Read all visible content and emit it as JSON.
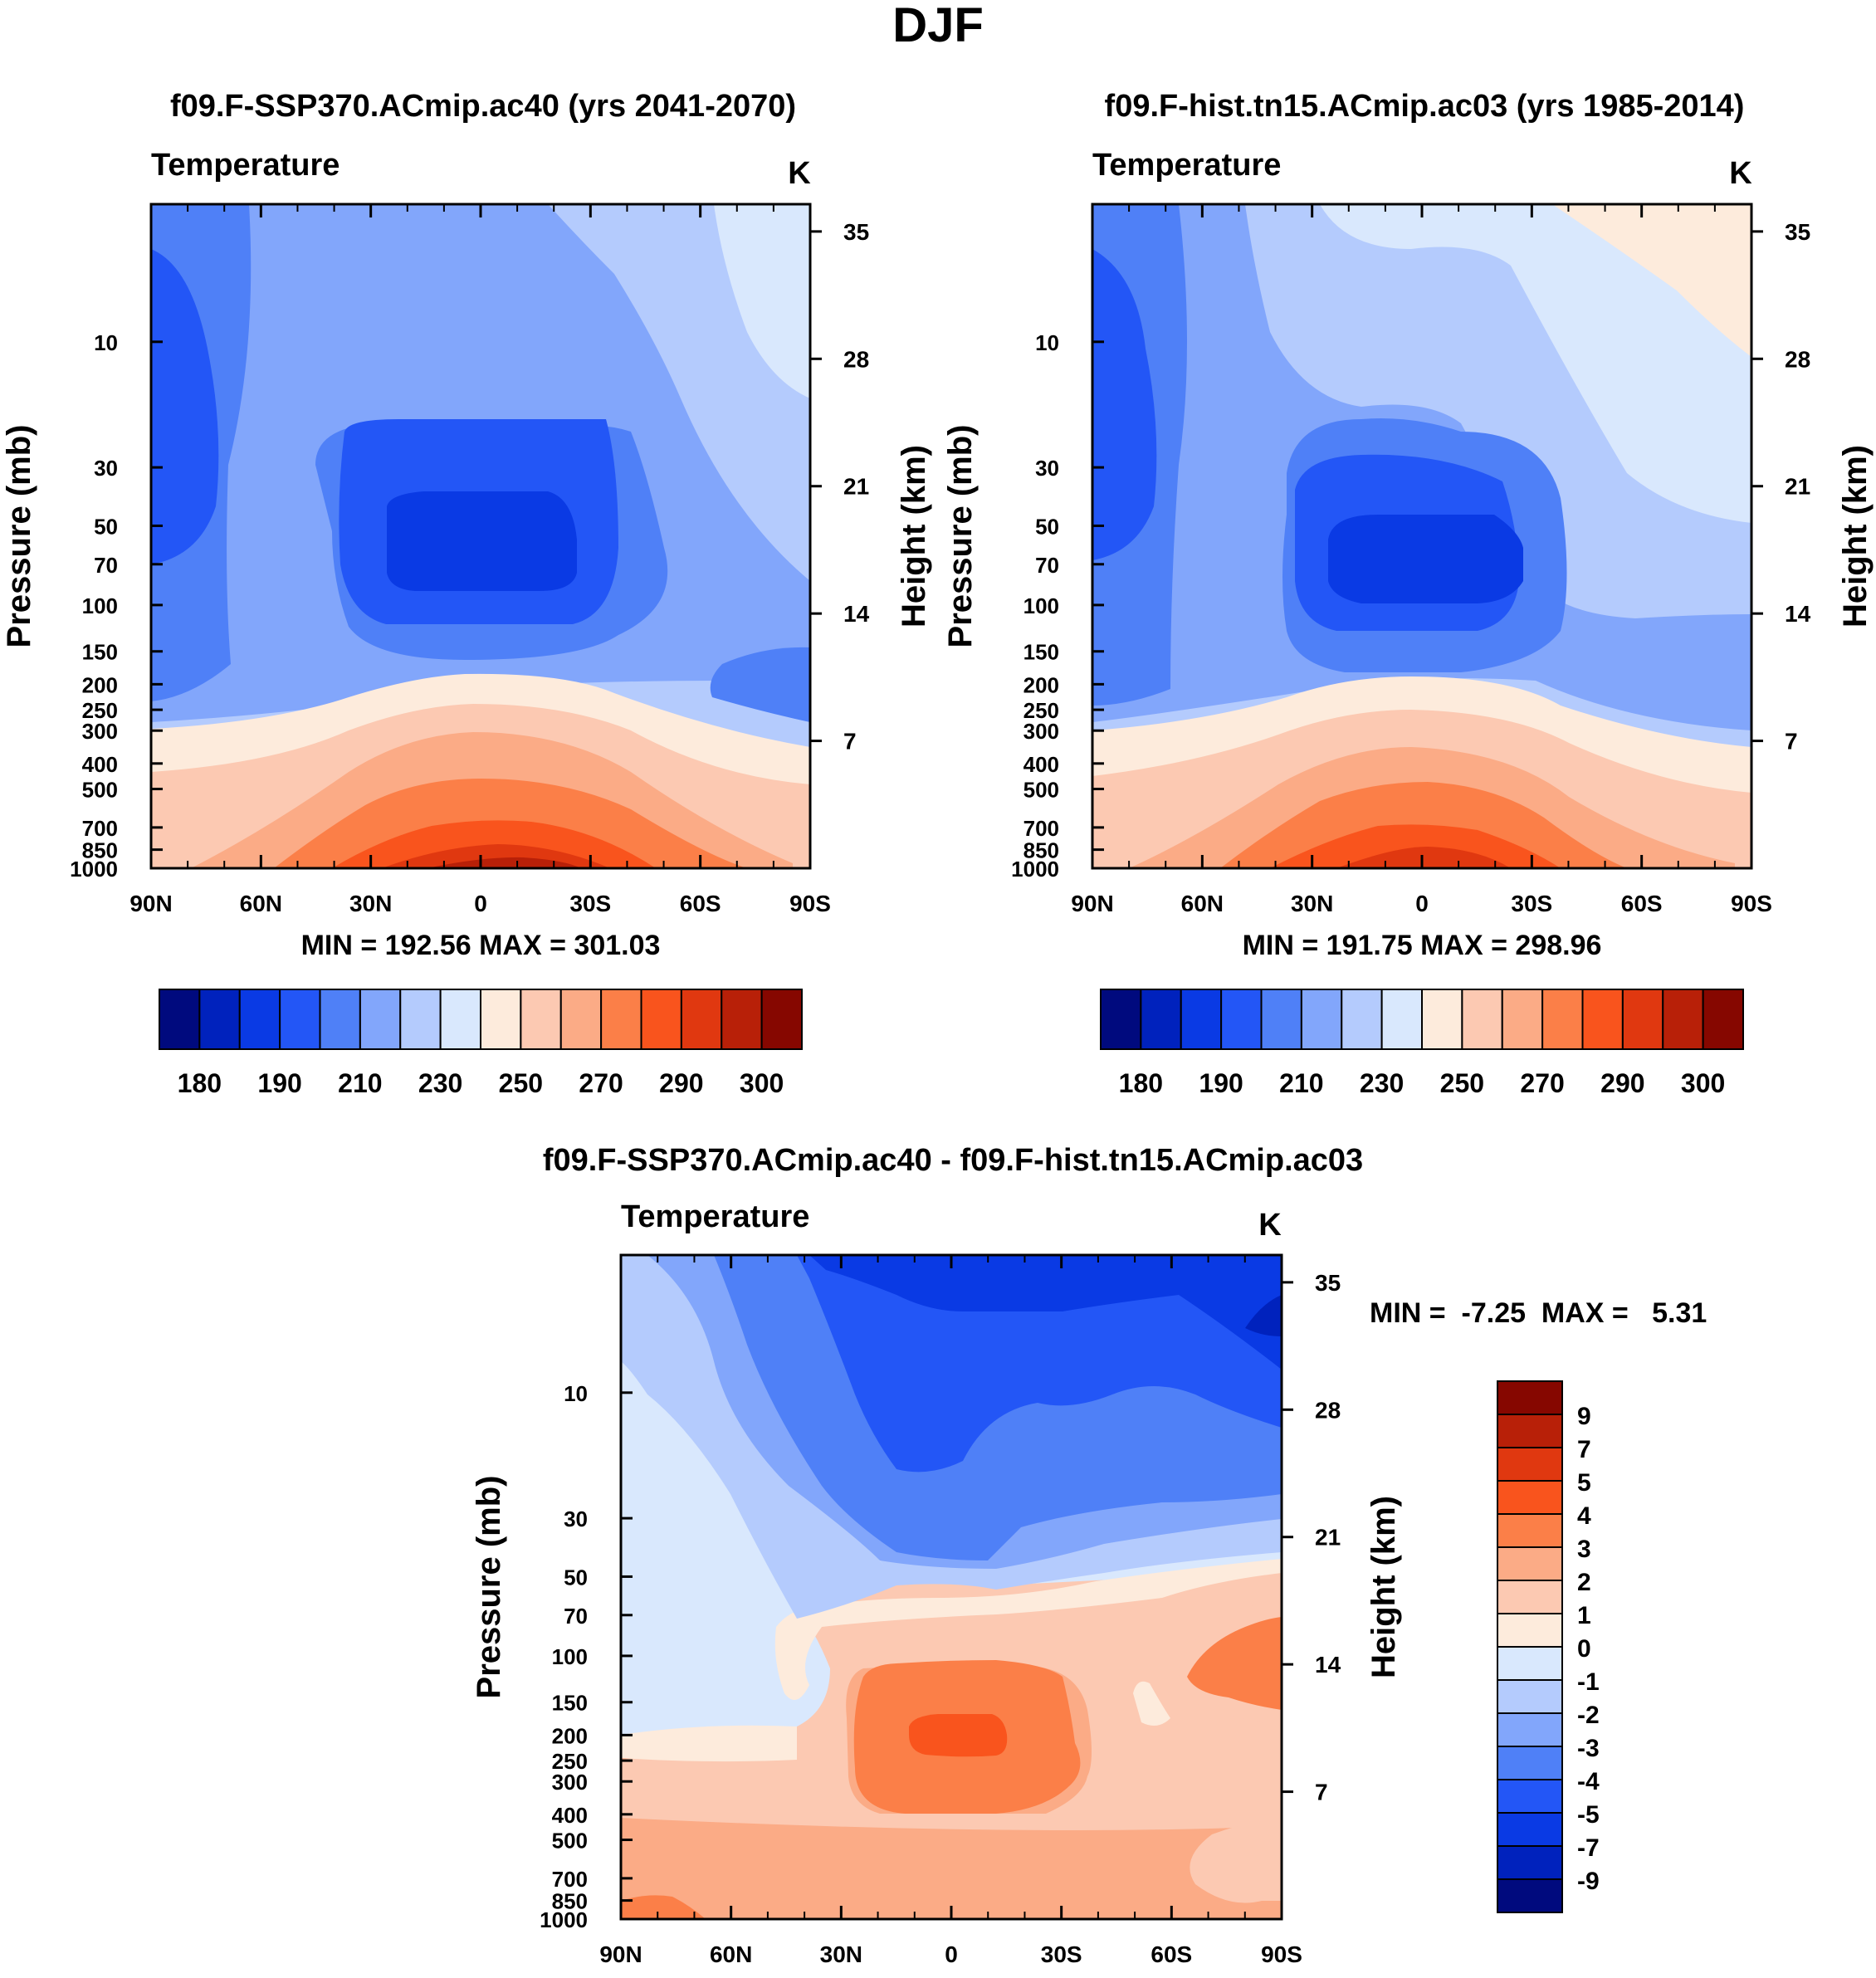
{
  "figure_title": "DJF",
  "colors": {
    "temp": [
      "#000a7e",
      "#0022bd",
      "#0a3ae4",
      "#2356f6",
      "#4f80f7",
      "#82a6fb",
      "#b4cbfd",
      "#d9e8fd",
      "#fdebdc",
      "#fcc9b2",
      "#fbab86",
      "#fb7f48",
      "#f9541d",
      "#e03810",
      "#b82008",
      "#860700"
    ],
    "diff": [
      "#000a7e",
      "#0022bd",
      "#0a3ae4",
      "#2356f6",
      "#4f80f7",
      "#82a6fb",
      "#b4cbfd",
      "#d9e8fd",
      "#fdebdc",
      "#fcc9b2",
      "#fbab86",
      "#fb7f48",
      "#f9541d",
      "#e03810",
      "#b82008",
      "#860700"
    ]
  },
  "panels": [
    {
      "id": "future",
      "title": "f09.F-SSP370.ACmip.ac40 (yrs 2041-2070)",
      "field_label": "Temperature",
      "units": "K",
      "ylabel": "Pressure (mb)",
      "ylabel2": "Height (km)",
      "stats": "MIN = 192.56  MAX = 301.03",
      "colorbar_labels": [
        "180",
        "190",
        "210",
        "230",
        "250",
        "270",
        "290",
        "300"
      ]
    },
    {
      "id": "historical",
      "title": "f09.F-hist.tn15.ACmip.ac03 (yrs 1985-2014)",
      "field_label": "Temperature",
      "units": "K",
      "ylabel": "Pressure (mb)",
      "ylabel2": "Height (km)",
      "stats": "MIN = 191.75  MAX = 298.96",
      "colorbar_labels": [
        "180",
        "190",
        "210",
        "230",
        "250",
        "270",
        "290",
        "300"
      ]
    },
    {
      "id": "difference",
      "title": "f09.F-SSP370.ACmip.ac40 - f09.F-hist.tn15.ACmip.ac03",
      "field_label": "Temperature",
      "units": "K",
      "ylabel": "Pressure (mb)",
      "ylabel2": "Height (km)",
      "stats": "MIN =  -7.25  MAX =   5.31",
      "colorbar_labels": [
        "9",
        "7",
        "5",
        "4",
        "3",
        "2",
        "1",
        "0",
        "-1",
        "-2",
        "-3",
        "-4",
        "-5",
        "-7",
        "-9"
      ]
    }
  ],
  "chart_data": [
    {
      "type": "heatmap",
      "title": "f09.F-SSP370.ACmip.ac40 (yrs 2041-2070)",
      "variable": "Temperature",
      "units": "K",
      "xlabel": "",
      "ylabel": "Pressure (mb)",
      "ylabel_right": "Height (km)",
      "x_ticks": [
        "90N",
        "60N",
        "30N",
        "0",
        "30S",
        "60S",
        "90S"
      ],
      "y_ticks": [
        "10",
        "30",
        "50",
        "70",
        "100",
        "150",
        "200",
        "250",
        "300",
        "400",
        "500",
        "700",
        "850",
        "1000"
      ],
      "y_ticks_right": [
        "35",
        "28",
        "21",
        "14",
        "7"
      ],
      "xlim": [
        90,
        -90
      ],
      "ylim": [
        1000,
        3
      ],
      "min": 192.56,
      "max": 301.03,
      "contour_levels": [
        180,
        185,
        190,
        200,
        210,
        220,
        230,
        240,
        250,
        260,
        270,
        280,
        290,
        295,
        300
      ]
    },
    {
      "type": "heatmap",
      "title": "f09.F-hist.tn15.ACmip.ac03 (yrs 1985-2014)",
      "variable": "Temperature",
      "units": "K",
      "xlabel": "",
      "ylabel": "Pressure (mb)",
      "ylabel_right": "Height (km)",
      "x_ticks": [
        "90N",
        "60N",
        "30N",
        "0",
        "30S",
        "60S",
        "90S"
      ],
      "y_ticks": [
        "10",
        "30",
        "50",
        "70",
        "100",
        "150",
        "200",
        "250",
        "300",
        "400",
        "500",
        "700",
        "850",
        "1000"
      ],
      "y_ticks_right": [
        "35",
        "28",
        "21",
        "14",
        "7"
      ],
      "xlim": [
        90,
        -90
      ],
      "ylim": [
        1000,
        3
      ],
      "min": 191.75,
      "max": 298.96,
      "contour_levels": [
        180,
        185,
        190,
        200,
        210,
        220,
        230,
        240,
        250,
        260,
        270,
        280,
        290,
        295,
        300
      ]
    },
    {
      "type": "heatmap",
      "title": "f09.F-SSP370.ACmip.ac40 - f09.F-hist.tn15.ACmip.ac03",
      "variable": "Temperature",
      "units": "K",
      "xlabel": "",
      "ylabel": "Pressure (mb)",
      "ylabel_right": "Height (km)",
      "x_ticks": [
        "90N",
        "60N",
        "30N",
        "0",
        "30S",
        "60S",
        "90S"
      ],
      "y_ticks": [
        "10",
        "30",
        "50",
        "70",
        "100",
        "150",
        "200",
        "250",
        "300",
        "400",
        "500",
        "700",
        "850",
        "1000"
      ],
      "y_ticks_right": [
        "35",
        "28",
        "21",
        "14",
        "7"
      ],
      "xlim": [
        90,
        -90
      ],
      "ylim": [
        1000,
        3
      ],
      "min": -7.25,
      "max": 5.31,
      "contour_levels": [
        -9,
        -7,
        -5,
        -4,
        -3,
        -2,
        -1,
        0,
        1,
        2,
        3,
        4,
        5,
        7,
        9
      ]
    }
  ]
}
